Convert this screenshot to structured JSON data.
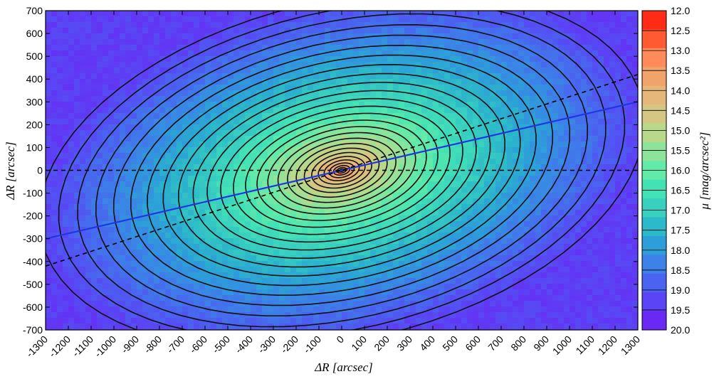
{
  "chart_data": {
    "type": "heatmap",
    "title": "",
    "xlabel": "ΔR [arcsec]",
    "ylabel": "ΔR [arcsec]",
    "xlim": [
      -1300,
      1300
    ],
    "ylim": [
      -700,
      700
    ],
    "x_ticks": [
      -1300,
      -1200,
      -1100,
      -1000,
      -900,
      -800,
      -700,
      -600,
      -500,
      -400,
      -300,
      -200,
      -100,
      0,
      100,
      200,
      300,
      400,
      500,
      600,
      700,
      800,
      900,
      1000,
      1100,
      1200,
      1300
    ],
    "y_ticks": [
      -700,
      -600,
      -500,
      -400,
      -300,
      -200,
      -100,
      0,
      100,
      200,
      300,
      400,
      500,
      600,
      700
    ],
    "colorbar": {
      "label": "μ [mag/arcsec²]",
      "ticks": [
        "12.0",
        "12.5",
        "13.0",
        "13.5",
        "14.0",
        "14.5",
        "15.0",
        "15.5",
        "16.0",
        "16.5",
        "17.0",
        "17.5",
        "18.0",
        "18.5",
        "19.0",
        "19.5",
        "20.0"
      ],
      "min": 12.0,
      "max": 20.0,
      "colors": [
        "#ff2b14",
        "#ff5a32",
        "#ff8a5a",
        "#f0a36b",
        "#e6b77a",
        "#d4c783",
        "#b9d88a",
        "#8ee39a",
        "#62eaa8",
        "#43e2b6",
        "#39d0bf",
        "#2cb9c9",
        "#2c9fd8",
        "#3c82e8",
        "#4a63f0",
        "#5a44f5",
        "#6a28f3"
      ]
    },
    "model": {
      "center": [
        0,
        0
      ],
      "position_angle_deg": 13,
      "axis_ratio": 0.55,
      "central_brightness": 12.6,
      "background_brightness": 19.6
    },
    "lines": [
      {
        "name": "",
        "style": "solid",
        "color": "#1f36e0",
        "points": [
          [
            -1300,
            -300
          ],
          [
            1300,
            300
          ]
        ]
      },
      {
        "name": "",
        "style": "dashed",
        "color": "#000000",
        "points": [
          [
            -1300,
            -420
          ],
          [
            1300,
            420
          ]
        ]
      },
      {
        "name": "",
        "style": "dashed",
        "color": "#000000",
        "points": [
          [
            -1300,
            0
          ],
          [
            1300,
            0
          ]
        ]
      }
    ]
  }
}
